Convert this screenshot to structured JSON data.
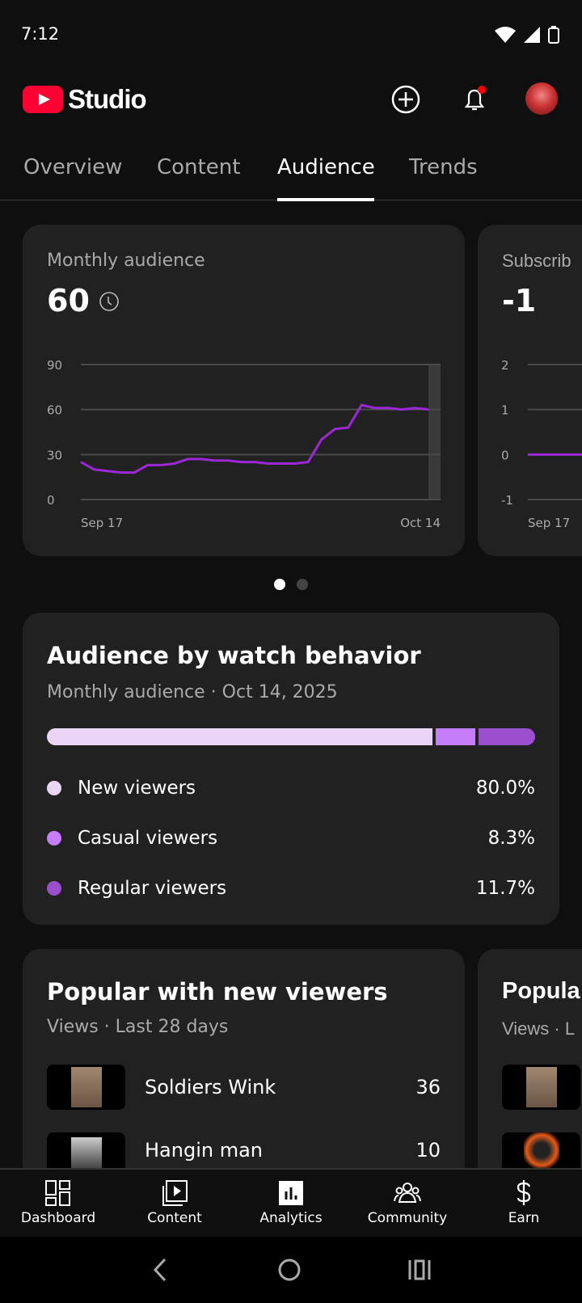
{
  "status": {
    "time": "7:12"
  },
  "header": {
    "app_name": "Studio"
  },
  "tabs": [
    {
      "label": "Overview"
    },
    {
      "label": "Content"
    },
    {
      "label": "Audience",
      "active": true
    },
    {
      "label": "Trends"
    }
  ],
  "cards": {
    "monthly": {
      "title": "Monthly audience",
      "value": "60"
    },
    "subscribers": {
      "title": "Subscrib",
      "value": "-1"
    }
  },
  "chart_data": [
    {
      "type": "line",
      "title": "Monthly audience",
      "yticks": [
        "90",
        "60",
        "30",
        "0"
      ],
      "ylim": [
        0,
        90
      ],
      "xticks": [
        "Sep 17",
        "Oct 14"
      ],
      "grid": true,
      "color": "#9c27d6",
      "values": [
        25,
        20,
        19,
        18,
        18,
        23,
        23,
        24,
        27,
        27,
        26,
        26,
        25,
        25,
        24,
        24,
        24,
        25,
        40,
        47,
        48,
        63,
        61,
        61,
        60,
        61,
        60
      ]
    },
    {
      "type": "line",
      "title": "Subscrib",
      "yticks": [
        "2",
        "1",
        "0",
        "-1"
      ],
      "ylim": [
        -1,
        2
      ],
      "xticks": [
        "Sep 17"
      ],
      "grid": true,
      "color": "#9c27d6",
      "values": [
        0,
        0
      ]
    }
  ],
  "watch": {
    "title": "Audience by watch behavior",
    "subtitle": "Monthly audience · Oct 14, 2025",
    "segments": [
      {
        "label": "New viewers",
        "pct": "80.0%",
        "value": 80.0,
        "color": "#e9d6f5"
      },
      {
        "label": "Casual viewers",
        "pct": "8.3%",
        "value": 8.3,
        "color": "#c57dfa"
      },
      {
        "label": "Regular viewers",
        "pct": "11.7%",
        "value": 11.7,
        "color": "#9a4fcf"
      }
    ]
  },
  "popular": {
    "title": "Popular with new viewers",
    "subtitle": "Views · Last 28 days",
    "items": [
      {
        "title": "Soldiers Wink",
        "views": "36"
      },
      {
        "title": "Hangin man",
        "views": "10"
      }
    ],
    "next_title": "Popula",
    "next_subtitle": "Views · L"
  },
  "nav": [
    {
      "label": "Dashboard",
      "icon": "dashboard-icon"
    },
    {
      "label": "Content",
      "icon": "content-icon"
    },
    {
      "label": "Analytics",
      "icon": "analytics-icon",
      "active": true
    },
    {
      "label": "Community",
      "icon": "community-icon"
    },
    {
      "label": "Earn",
      "icon": "dollar-icon"
    }
  ]
}
